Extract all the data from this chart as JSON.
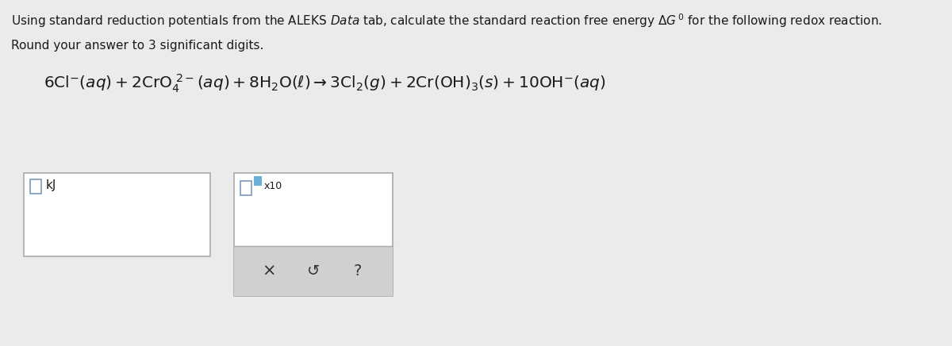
{
  "bg_color": "#ebebeb",
  "white": "#ffffff",
  "btn_bg": "#d0d0d0",
  "text_color": "#1a1a1a",
  "box_edge": "#aaaaaa",
  "checkbox_edge": "#7a9abf",
  "blue_sq": "#6ab0d4",
  "line1_pre": "Using standard reduction potentials from the ALEKS ",
  "line1_italic": "Data",
  "line1_mid": " tab, calculate the standard reaction free energy ΔG",
  "line1_sup": "0",
  "line1_end": " for the following redox reaction.",
  "line2": "Round your answer to 3 significant digits.",
  "kJ_label": "kJ",
  "cross_symbol": "×",
  "undo_symbol": "↺",
  "question_symbol": "?",
  "x10_label": "x10"
}
